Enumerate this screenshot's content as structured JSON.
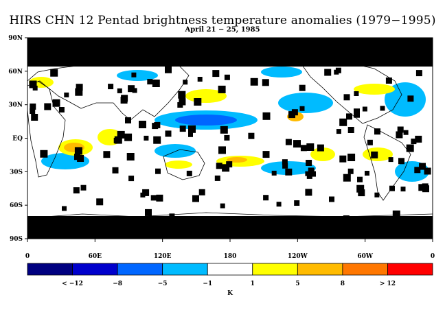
{
  "title": "HIRS CHN 12 Pentad brightness temperature anomalies (1979−1995)",
  "subtitle": "April 21 − 25, 1985",
  "map": {
    "lat_ticks": [
      "90N",
      "60N",
      "30N",
      "EQ",
      "30S",
      "60S",
      "90S"
    ],
    "lon_ticks": [
      "0",
      "60E",
      "120E",
      "180",
      "120W",
      "60W",
      "0"
    ],
    "colors": {
      "missing": "#000000",
      "land_outline": "#000000",
      "ocean_background": "#ffffff"
    }
  },
  "colorbar": {
    "unit": "K",
    "bins": [
      {
        "color": "#000080"
      },
      {
        "color": "#0000cc"
      },
      {
        "color": "#0066ff"
      },
      {
        "color": "#00bbff"
      },
      {
        "color": "#ffffff"
      },
      {
        "color": "#ffff00"
      },
      {
        "color": "#ffbb00"
      },
      {
        "color": "#ff7700"
      },
      {
        "color": "#ff0000"
      }
    ],
    "labels": [
      "< −12",
      "−8",
      "−5",
      "−1",
      "1",
      "5",
      "8",
      "> 12"
    ]
  }
}
